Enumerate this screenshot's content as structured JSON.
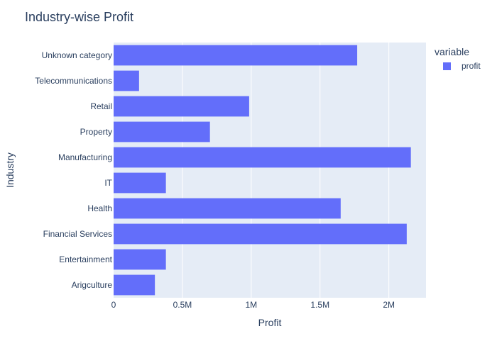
{
  "chart_data": {
    "type": "bar",
    "orientation": "horizontal",
    "title": "Industry-wise Profit",
    "xlabel": "Profit",
    "ylabel": "Industry",
    "categories": [
      "Arigculture",
      "Entertainment",
      "Financial Services",
      "Health",
      "IT",
      "Manufacturing",
      "Property",
      "Retail",
      "Telecommunications",
      "Unknown category"
    ],
    "series": [
      {
        "name": "profit",
        "values": [
          300000,
          380000,
          2130000,
          1650000,
          380000,
          2160000,
          700000,
          985000,
          185000,
          1770000
        ]
      }
    ],
    "xlim": [
      0,
      2270000
    ],
    "xticks": [
      0,
      500000,
      1000000,
      1500000,
      2000000
    ],
    "xtick_labels": [
      "0",
      "0.5M",
      "1M",
      "1.5M",
      "2M"
    ],
    "legend": {
      "title": "variable",
      "entries": [
        "profit"
      ],
      "position": "right"
    },
    "colors": {
      "bar": "#636efa",
      "plot_bg": "#e5ecf6",
      "grid": "#ffffff",
      "text": "#2a3f5f"
    },
    "grid": true
  }
}
